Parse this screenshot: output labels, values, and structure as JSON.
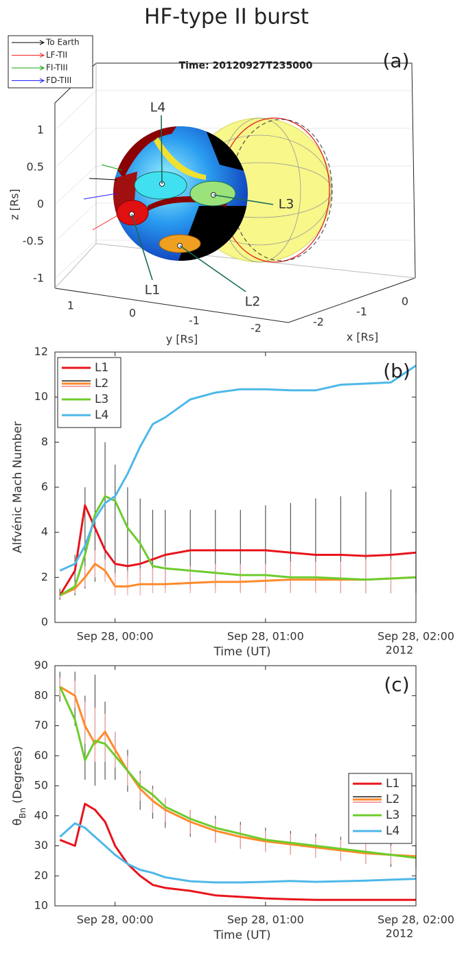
{
  "title": "HF-type II burst",
  "panel_a": {
    "panel_label": "(a)",
    "time_title": "Time: 20120927T235000",
    "legend": [
      {
        "name": "To Earth",
        "color": "#000000"
      },
      {
        "name": "LF-TII",
        "color": "#ff2020"
      },
      {
        "name": "FI-TIII",
        "color": "#10a010"
      },
      {
        "name": "FD-TIII",
        "color": "#2020ff"
      }
    ],
    "zlabel": "z [Rs]",
    "zticks": [
      1,
      0.5,
      0,
      -0.5,
      -1
    ],
    "ylabel": "y [Rs]",
    "yticks": [
      1,
      0,
      -1,
      -2
    ],
    "xlabel": "x [Rs]",
    "xticks": [
      0,
      -1,
      -2
    ],
    "regions": [
      "L1",
      "L2",
      "L3",
      "L4"
    ]
  },
  "chart_data": [
    {
      "type": "line",
      "panel_label": "(b)",
      "ylabel": "Alfvénic Mach Number",
      "xlabel": "Time (UT)",
      "x": [
        "2012-09-27T23:38",
        "2012-09-27T23:44",
        "2012-09-27T23:48",
        "2012-09-27T23:52",
        "2012-09-27T23:56",
        "2012-09-28T00:00",
        "2012-09-28T00:05",
        "2012-09-28T00:10",
        "2012-09-28T00:15",
        "2012-09-28T00:20",
        "2012-09-28T00:30",
        "2012-09-28T00:40",
        "2012-09-28T00:50",
        "2012-09-28T01:00",
        "2012-09-28T01:10",
        "2012-09-28T01:20",
        "2012-09-28T01:30",
        "2012-09-28T01:40",
        "2012-09-28T01:50",
        "2012-09-28T02:00"
      ],
      "xlim": [
        "2012-09-27T23:36",
        "2012-09-28T02:00"
      ],
      "xticks": [
        {
          "value": "2012-09-28T00:00",
          "label": "Sep 28, 00:00"
        },
        {
          "value": "2012-09-28T01:00",
          "label": "Sep 28, 01:00"
        },
        {
          "value": "2012-09-28T02:00",
          "label": "Sep 28, 02:00"
        }
      ],
      "x_offset_label": "2012",
      "ylim": [
        0,
        12
      ],
      "yticks": [
        0,
        2,
        4,
        6,
        8,
        10,
        12
      ],
      "legend": "upper left",
      "series": [
        {
          "name": "L1",
          "color": "#e8131b",
          "values": [
            1.2,
            2.3,
            5.2,
            4.2,
            3.2,
            2.6,
            2.5,
            2.6,
            2.8,
            3.0,
            3.2,
            3.2,
            3.2,
            3.2,
            3.1,
            3.0,
            3.0,
            2.95,
            3.0,
            3.1
          ]
        },
        {
          "name": "L2",
          "color": "#ff8a2a",
          "values": [
            1.2,
            1.5,
            2.0,
            2.6,
            2.3,
            1.6,
            1.6,
            1.7,
            1.7,
            1.7,
            1.75,
            1.8,
            1.8,
            1.85,
            1.9,
            1.9,
            1.9,
            1.9,
            1.95,
            2.0
          ],
          "error_bars": [
            {
              "color": "#555555",
              "low": [
                1.0,
                1.2,
                1.5,
                1.8,
                2.0,
                2.0,
                2.0,
                1.8,
                1.6,
                1.5,
                1.5,
                1.5,
                1.4,
                1.4,
                1.4,
                1.4,
                1.3,
                1.3,
                1.3,
                1.3
              ],
              "high": [
                1.5,
                3,
                6,
                9,
                8,
                7,
                6,
                5.5,
                5,
                5,
                5,
                5,
                5,
                5.2,
                5.3,
                5.5,
                5.6,
                5.8,
                5.9,
                6.1
              ]
            },
            {
              "color": "#f4a0a0",
              "low": [
                1.1,
                1.3,
                1.6,
                2.0,
                1.8,
                1.2,
                1.2,
                1.2,
                1.3,
                1.3,
                1.3,
                1.3,
                1.3,
                1.3,
                1.3,
                1.3,
                1.3,
                1.3,
                1.3,
                1.3
              ],
              "high": [
                1.3,
                1.8,
                2.5,
                3.2,
                2.8,
                2.2,
                2.3,
                2.4,
                2.4,
                2.5,
                2.5,
                2.6,
                2.6,
                2.6,
                2.7,
                2.7,
                2.7,
                2.8,
                2.8,
                2.8
              ]
            }
          ]
        },
        {
          "name": "L3",
          "color": "#6ccc2c",
          "values": [
            1.2,
            1.6,
            3.0,
            4.8,
            5.6,
            5.4,
            4.2,
            3.5,
            2.5,
            2.4,
            2.3,
            2.2,
            2.1,
            2.1,
            2.0,
            2.0,
            1.95,
            1.9,
            1.95,
            2.0
          ]
        },
        {
          "name": "L4",
          "color": "#4db8e8",
          "values": [
            2.3,
            2.6,
            3.4,
            4.6,
            5.3,
            5.6,
            6.6,
            7.8,
            8.8,
            9.1,
            9.9,
            10.2,
            10.35,
            10.35,
            10.3,
            10.3,
            10.55,
            10.6,
            10.65,
            11.4
          ]
        }
      ]
    },
    {
      "type": "line",
      "panel_label": "(c)",
      "ylabel": {
        "symbol": "θ",
        "subscript": "Bn",
        "text": "(Degrees)"
      },
      "xlabel": "Time (UT)",
      "x": [
        "2012-09-27T23:38",
        "2012-09-27T23:44",
        "2012-09-27T23:48",
        "2012-09-27T23:52",
        "2012-09-27T23:56",
        "2012-09-28T00:00",
        "2012-09-28T00:05",
        "2012-09-28T00:10",
        "2012-09-28T00:15",
        "2012-09-28T00:20",
        "2012-09-28T00:30",
        "2012-09-28T00:40",
        "2012-09-28T00:50",
        "2012-09-28T01:00",
        "2012-09-28T01:10",
        "2012-09-28T01:20",
        "2012-09-28T01:30",
        "2012-09-28T01:40",
        "2012-09-28T01:50",
        "2012-09-28T02:00"
      ],
      "xlim": [
        "2012-09-27T23:36",
        "2012-09-28T02:00"
      ],
      "xticks": [
        {
          "value": "2012-09-28T00:00",
          "label": "Sep 28, 00:00"
        },
        {
          "value": "2012-09-28T01:00",
          "label": "Sep 28, 01:00"
        },
        {
          "value": "2012-09-28T02:00",
          "label": "Sep 28, 02:00"
        }
      ],
      "x_offset_label": "2012",
      "ylim": [
        10,
        90
      ],
      "yticks": [
        10,
        20,
        30,
        40,
        50,
        60,
        70,
        80,
        90
      ],
      "legend": "center right",
      "series": [
        {
          "name": "L1",
          "color": "#e8131b",
          "values": [
            32,
            30,
            44,
            42,
            38,
            30,
            24,
            20,
            17,
            16,
            15,
            13.5,
            13,
            12.5,
            12.2,
            12,
            12,
            12,
            12,
            12
          ]
        },
        {
          "name": "L2",
          "color": "#ff8a2a",
          "values": [
            83,
            80,
            70,
            64,
            68,
            62,
            55,
            49,
            45,
            42,
            38,
            35,
            33,
            31.5,
            30.5,
            29.5,
            28.5,
            27.5,
            27,
            26.5
          ],
          "error_bars": [
            {
              "color": "#555555",
              "low": [
                78,
                70,
                52,
                50,
                52,
                52,
                48,
                42,
                39,
                36,
                33,
                31,
                29,
                28,
                27,
                26,
                25,
                24,
                23,
                22.5
              ],
              "high": [
                88,
                88,
                80,
                87,
                78,
                68,
                62,
                55,
                50,
                46,
                42,
                40,
                38,
                36,
                35,
                34,
                33,
                32,
                31,
                30.5
              ]
            },
            {
              "color": "#f4a0a0",
              "low": [
                80,
                76,
                64,
                58,
                58,
                56,
                50,
                45,
                41,
                38,
                34,
                31,
                29,
                28,
                27,
                26,
                25,
                24,
                24,
                23
              ],
              "high": [
                86,
                85,
                78,
                76,
                74,
                68,
                60,
                54,
                49,
                46,
                42,
                39,
                37,
                35,
                34,
                33,
                32,
                31,
                30,
                30
              ]
            }
          ]
        },
        {
          "name": "L3",
          "color": "#6ccc2c",
          "values": [
            83,
            72,
            58.5,
            65,
            64,
            60,
            55,
            50,
            47,
            43,
            39,
            36,
            34,
            32,
            31,
            30,
            29,
            28,
            27,
            26
          ]
        },
        {
          "name": "L4",
          "color": "#4db8e8",
          "values": [
            33,
            37.5,
            36,
            33,
            30,
            27,
            24,
            22,
            21,
            19.5,
            18.2,
            17.8,
            17.8,
            18,
            18.3,
            18,
            18.2,
            18.4,
            18.7,
            19
          ]
        }
      ]
    }
  ]
}
